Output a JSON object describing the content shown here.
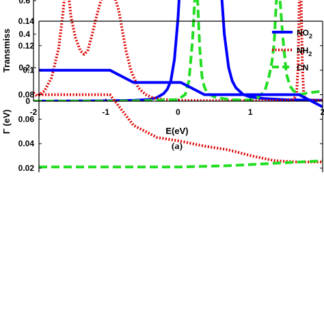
{
  "chart_data": [
    {
      "type": "line",
      "xlabel": "E(eV)",
      "ylabel": "Transmiss",
      "panel_label": "(a)",
      "xlim": [
        -2,
        2
      ],
      "ylim": [
        0,
        0.65
      ],
      "xticks": [
        "-2",
        "-1",
        "0",
        "1",
        "2"
      ],
      "yticks": [
        "0",
        "0.2",
        "0.4",
        "0.6"
      ],
      "grid": false,
      "series": [
        {
          "color": "#0000ff",
          "style": "solid",
          "x": [
            -2.0,
            -1.0,
            -0.6,
            -0.4,
            -0.3,
            -0.2,
            -0.15,
            -0.1,
            -0.05,
            0.0,
            0.02,
            0.05,
            0.15,
            0.3,
            0.45,
            0.55,
            0.6,
            0.64,
            0.7,
            0.75,
            0.8,
            0.9,
            1.0,
            1.2,
            1.5,
            2.0
          ],
          "y": [
            0.0,
            0.002,
            0.005,
            0.01,
            0.02,
            0.045,
            0.07,
            0.12,
            0.25,
            0.5,
            0.65,
            0.66,
            0.65,
            0.65,
            0.65,
            0.66,
            0.65,
            0.4,
            0.2,
            0.12,
            0.08,
            0.04,
            0.025,
            0.015,
            0.008,
            0.005
          ]
        },
        {
          "color": "#dd0000",
          "style": "dotted",
          "x": [
            -2.0,
            -1.95,
            -1.85,
            -1.75,
            -1.65,
            -1.6,
            -1.56,
            -1.52,
            -1.48,
            -1.42,
            -1.35,
            -1.3,
            -1.25,
            -1.2,
            -1.12,
            -1.05,
            -0.95,
            -0.88,
            -0.82,
            -0.77,
            -0.72,
            -0.65,
            -0.55,
            -0.45,
            -0.35,
            -0.2,
            0.0,
            0.5,
            1.0,
            1.5,
            1.6,
            1.64,
            1.66,
            1.68,
            1.7,
            1.72,
            1.74,
            1.8,
            2.0
          ],
          "y": [
            0.05,
            0.03,
            0.06,
            0.14,
            0.32,
            0.5,
            0.66,
            0.65,
            0.5,
            0.38,
            0.3,
            0.28,
            0.3,
            0.38,
            0.52,
            0.63,
            0.66,
            0.63,
            0.54,
            0.42,
            0.3,
            0.18,
            0.08,
            0.04,
            0.02,
            0.01,
            0.005,
            0.003,
            0.003,
            0.004,
            0.01,
            0.04,
            0.2,
            0.66,
            0.66,
            0.2,
            0.03,
            0.006,
            0.003
          ]
        },
        {
          "color": "#22dd22",
          "style": "dashed",
          "x": [
            -2.0,
            -1.0,
            -0.5,
            0.0,
            0.1,
            0.15,
            0.2,
            0.23,
            0.25,
            0.27,
            0.3,
            0.33,
            0.36,
            0.4,
            0.5,
            0.7,
            0.9,
            1.0,
            1.1,
            1.2,
            1.26,
            1.3,
            1.33,
            1.36,
            1.4,
            1.45,
            1.5,
            1.55,
            1.6,
            1.7,
            1.8,
            2.0
          ],
          "y": [
            0.0,
            0.0,
            0.002,
            0.01,
            0.04,
            0.12,
            0.36,
            0.6,
            0.64,
            0.6,
            0.32,
            0.15,
            0.09,
            0.05,
            0.025,
            0.01,
            0.006,
            0.008,
            0.02,
            0.06,
            0.15,
            0.24,
            0.35,
            0.6,
            0.66,
            0.38,
            0.16,
            0.09,
            0.06,
            0.04,
            0.05,
            0.06
          ]
        }
      ]
    },
    {
      "type": "line",
      "ylabel": "Γ (eV)",
      "ylim": [
        0.02,
        0.14
      ],
      "yticks": [
        "0.02",
        "0.04",
        "0.06",
        "0.08",
        "0.1",
        "0.12",
        "0.14"
      ],
      "xlim": [
        0,
        12
      ],
      "grid": false,
      "legend_position": "top-right",
      "series": [
        {
          "name": "NO2",
          "color": "#0000ff",
          "style": "solid",
          "x": [
            0,
            2,
            3,
            4,
            5,
            6,
            7,
            8,
            9,
            10,
            11,
            12
          ],
          "y": [
            0.1,
            0.1,
            0.1,
            0.09,
            0.09,
            0.09,
            0.08,
            0.08,
            0.08,
            0.08,
            0.08,
            0.07
          ]
        },
        {
          "name": "NH2",
          "color": "#dd0000",
          "style": "dotted",
          "x": [
            0,
            1,
            2,
            3,
            4,
            5,
            6,
            7,
            8,
            9,
            10,
            11,
            12
          ],
          "y": [
            0.08,
            0.08,
            0.08,
            0.08,
            0.055,
            0.045,
            0.042,
            0.038,
            0.035,
            0.03,
            0.026,
            0.025,
            0.025
          ]
        },
        {
          "name": "CN",
          "color": "#22dd22",
          "style": "dashed",
          "x": [
            0,
            2,
            4,
            6,
            8,
            9,
            10,
            11,
            12
          ],
          "y": [
            0.021,
            0.021,
            0.021,
            0.021,
            0.022,
            0.023,
            0.024,
            0.025,
            0.026
          ]
        }
      ],
      "legend": [
        {
          "label": "NO",
          "sub": "2"
        },
        {
          "label": "NH",
          "sub": "2"
        },
        {
          "label": "CN",
          "sub": ""
        }
      ]
    }
  ]
}
